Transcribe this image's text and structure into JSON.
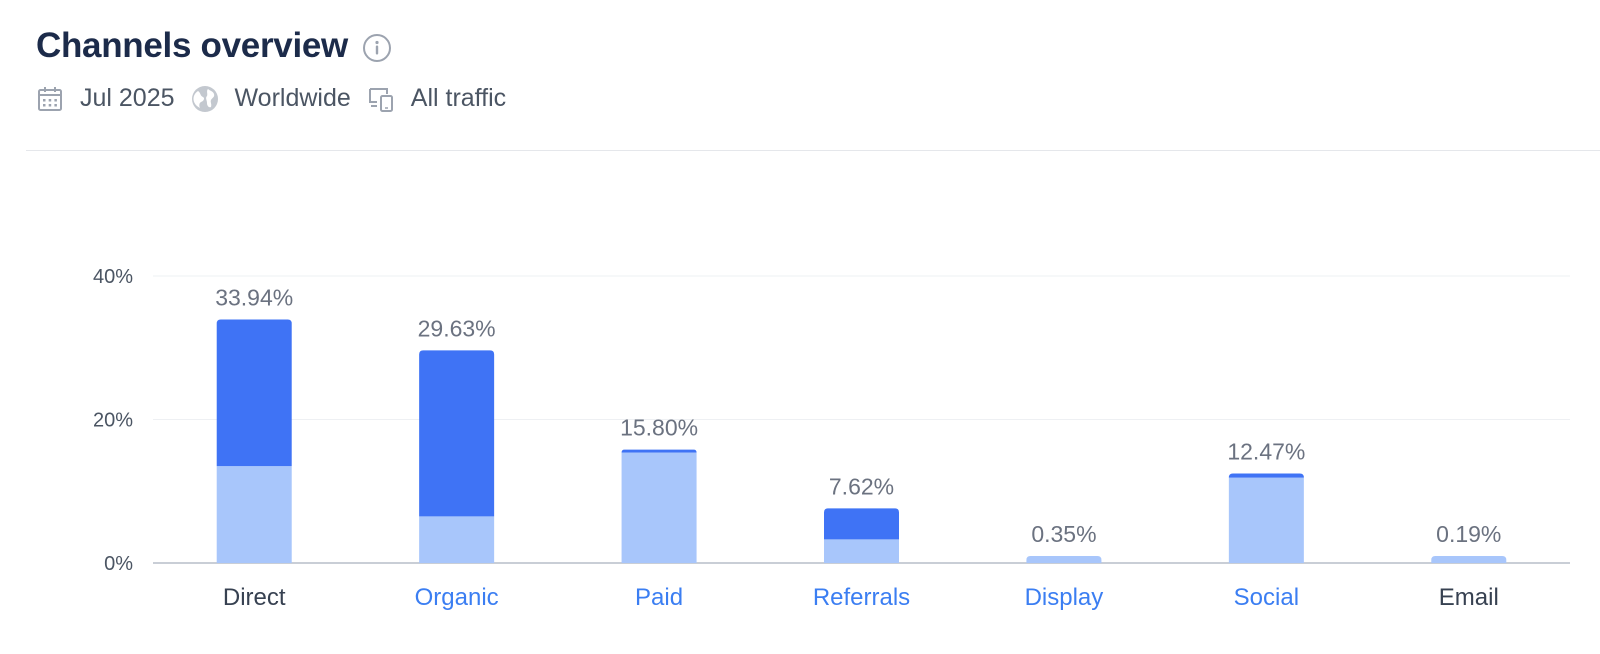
{
  "header": {
    "title": "Channels overview",
    "info_icon": "info-icon",
    "filters": [
      {
        "icon": "calendar-icon",
        "label": "Jul 2025"
      },
      {
        "icon": "globe-icon",
        "label": "Worldwide"
      },
      {
        "icon": "devices-icon",
        "label": "All traffic"
      }
    ]
  },
  "colors": {
    "dark_segment": "#3f73f5",
    "light_segment": "#a8c6fb",
    "link_label": "#3b7ef2",
    "plain_label": "#374151",
    "axis_text": "#4b5563",
    "value_label": "#6b7280"
  },
  "chart_data": {
    "type": "bar",
    "stacked": true,
    "categories": [
      "Direct",
      "Organic",
      "Paid",
      "Referrals",
      "Display",
      "Social",
      "Email"
    ],
    "category_is_link": [
      false,
      true,
      true,
      true,
      true,
      true,
      false
    ],
    "totals": [
      33.94,
      29.63,
      15.8,
      7.62,
      0.35,
      12.47,
      0.19
    ],
    "total_labels": [
      "33.94%",
      "29.63%",
      "15.80%",
      "7.62%",
      "0.35%",
      "12.47%",
      "0.19%"
    ],
    "series": [
      {
        "values": [
          13.5,
          6.5,
          15.4,
          3.3,
          0.35,
          11.9,
          0.19
        ]
      },
      {
        "values": [
          20.44,
          23.13,
          0.4,
          4.32,
          0,
          0.57,
          0
        ]
      }
    ],
    "ylim": [
      0,
      40
    ],
    "yticks": [
      0,
      20,
      40
    ],
    "ytick_labels": [
      "0%",
      "20%",
      "40%"
    ],
    "grid": true
  }
}
